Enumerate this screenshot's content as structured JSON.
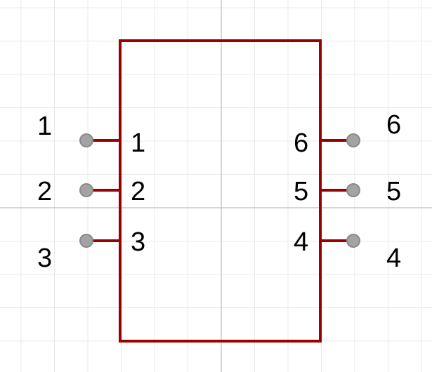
{
  "component": {
    "body_color": "#990000",
    "pin_color": "#990000",
    "grid_color": "#e8e8e8",
    "axis_color": "#bdbdbd",
    "pin_dot_fill": "#a3a3a3",
    "pin_dot_stroke": "#8a8a8a",
    "pins": [
      {
        "number": "1",
        "name": "1",
        "side": "left"
      },
      {
        "number": "2",
        "name": "2",
        "side": "left"
      },
      {
        "number": "3",
        "name": "3",
        "side": "left"
      },
      {
        "number": "6",
        "name": "6",
        "side": "right"
      },
      {
        "number": "5",
        "name": "5",
        "side": "right"
      },
      {
        "number": "4",
        "name": "4",
        "side": "right"
      }
    ]
  }
}
